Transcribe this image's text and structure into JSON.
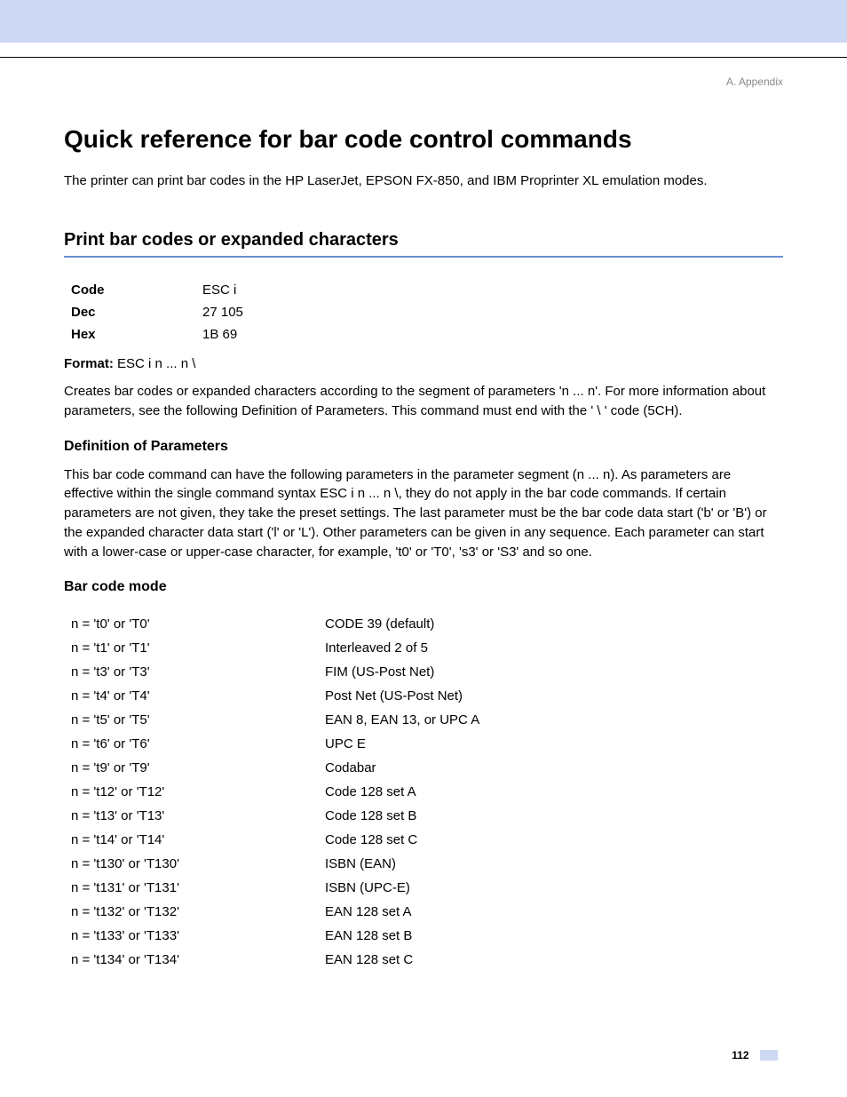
{
  "header": {
    "appendix": "A. Appendix"
  },
  "title": "Quick reference for bar code control commands",
  "intro": "The printer can print bar codes in the HP LaserJet, EPSON FX-850, and IBM Proprinter XL emulation modes.",
  "section": {
    "title": "Print bar codes or expanded characters",
    "codes": {
      "rows": [
        {
          "label": "Code",
          "value": "ESC i"
        },
        {
          "label": "Dec",
          "value": "27 105"
        },
        {
          "label": "Hex",
          "value": "1B 69"
        }
      ]
    },
    "format": {
      "label": "Format:",
      "value": " ESC i n ... n \\"
    },
    "desc1": "Creates bar codes or expanded characters according to the segment of parameters 'n ... n'. For more information about parameters, see the following Definition of Parameters. This command must end with the ' \\ ' code (5CH).",
    "defParamsTitle": "Definition of Parameters",
    "desc2": "This bar code command can have the following parameters in the parameter segment (n ... n). As parameters are effective within the single command syntax ESC i n ... n \\, they do not apply in the bar code commands. If certain parameters are not given, they take the preset settings. The last parameter must be the bar code data start ('b' or 'B') or the expanded character data start ('l' or 'L'). Other parameters can be given in any sequence. Each parameter can start with a lower-case or upper-case character, for example, 't0' or 'T0', 's3' or 'S3' and so one.",
    "barcodeModeTitle": "Bar code mode",
    "modes": [
      {
        "param": "n = 't0' or 'T0'",
        "desc": "CODE 39 (default)"
      },
      {
        "param": "n = 't1' or 'T1'",
        "desc": "Interleaved 2 of 5"
      },
      {
        "param": "n = 't3' or 'T3'",
        "desc": "FIM (US-Post Net)"
      },
      {
        "param": "n = 't4' or 'T4'",
        "desc": "Post Net (US-Post Net)"
      },
      {
        "param": "n = 't5' or 'T5'",
        "desc": "EAN 8, EAN 13, or UPC A"
      },
      {
        "param": "n = 't6' or 'T6'",
        "desc": "UPC E"
      },
      {
        "param": "n = 't9' or 'T9'",
        "desc": "Codabar"
      },
      {
        "param": "n = 't12' or 'T12'",
        "desc": "Code 128 set A"
      },
      {
        "param": "n = 't13' or 'T13'",
        "desc": "Code 128 set B"
      },
      {
        "param": "n = 't14' or 'T14'",
        "desc": "Code 128 set C"
      },
      {
        "param": "n = 't130' or 'T130'",
        "desc": "ISBN (EAN)"
      },
      {
        "param": "n = 't131' or 'T131'",
        "desc": "ISBN (UPC-E)"
      },
      {
        "param": "n = 't132' or 'T132'",
        "desc": "EAN 128 set A"
      },
      {
        "param": "n = 't133' or 'T133'",
        "desc": "EAN 128 set B"
      },
      {
        "param": "n = 't134' or 'T134'",
        "desc": "EAN 128 set C"
      }
    ]
  },
  "footer": {
    "pageNumber": "112"
  }
}
